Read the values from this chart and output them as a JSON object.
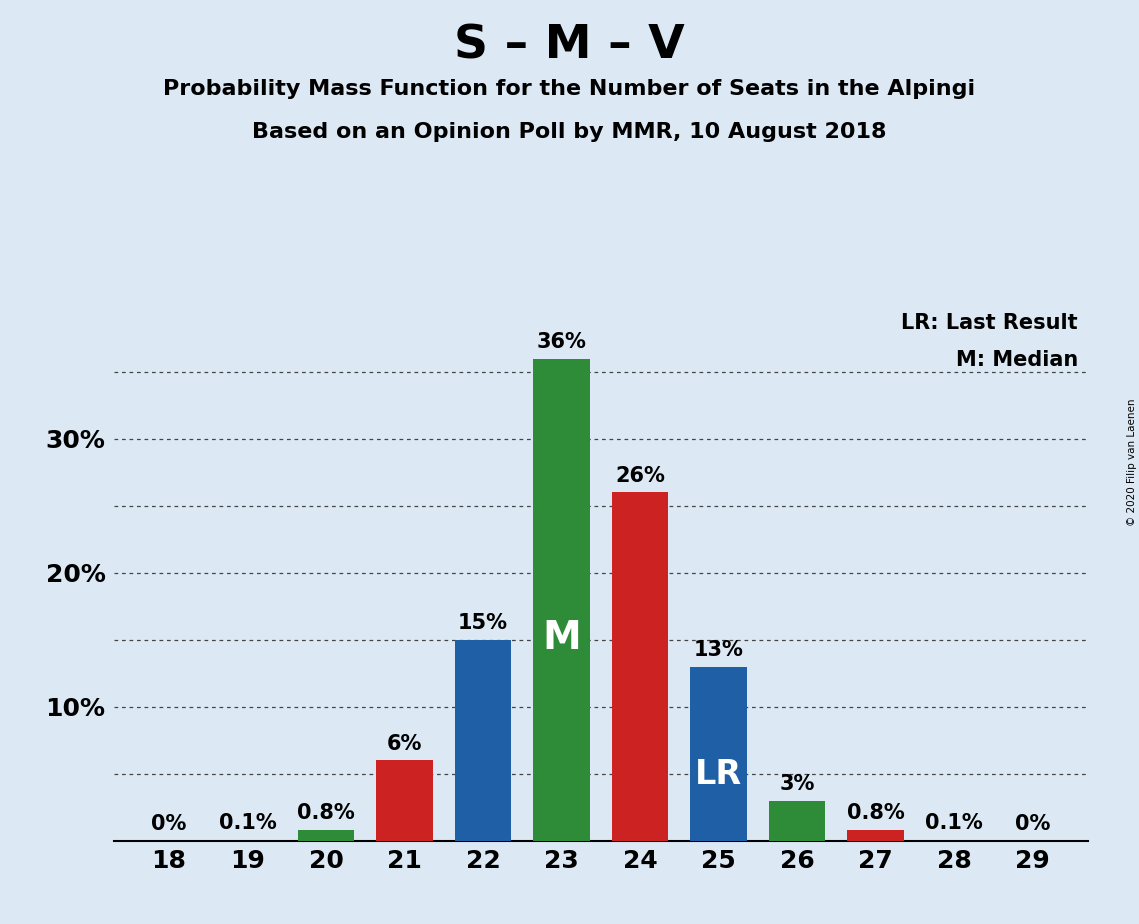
{
  "title": "S – M – V",
  "subtitle1": "Probability Mass Function for the Number of Seats in the Alpingi",
  "subtitle2": "Based on an Opinion Poll by MMR, 10 August 2018",
  "copyright": "© 2020 Filip van Laenen",
  "seats": [
    18,
    19,
    20,
    21,
    22,
    23,
    24,
    25,
    26,
    27,
    28,
    29
  ],
  "values": [
    0.0,
    0.1,
    0.8,
    6.0,
    15.0,
    36.0,
    26.0,
    13.0,
    3.0,
    0.8,
    0.1,
    0.0
  ],
  "labels": [
    "0%",
    "0.1%",
    "0.8%",
    "6%",
    "15%",
    "36%",
    "26%",
    "13%",
    "3%",
    "0.8%",
    "0.1%",
    "0%"
  ],
  "colors": [
    "none",
    "none",
    "#2e8b37",
    "#cc2222",
    "#1f5fa6",
    "#2e8b37",
    "#cc2222",
    "#1f5fa6",
    "#2e8b37",
    "#cc2222",
    "none",
    "none"
  ],
  "median_seat": 23,
  "last_result_seat": 25,
  "ylim": [
    0,
    40
  ],
  "dotted_lines": [
    5,
    10,
    15,
    20,
    25,
    30,
    35
  ],
  "background_color": "#dce9f5",
  "bar_width": 0.72,
  "legend_text1": "LR: Last Result",
  "legend_text2": "M: Median",
  "title_fontsize": 34,
  "subtitle_fontsize": 16,
  "label_fontsize": 15,
  "tick_fontsize": 18,
  "median_label": "M",
  "lr_label": "LR",
  "median_label_fontsize": 28,
  "lr_label_fontsize": 24
}
